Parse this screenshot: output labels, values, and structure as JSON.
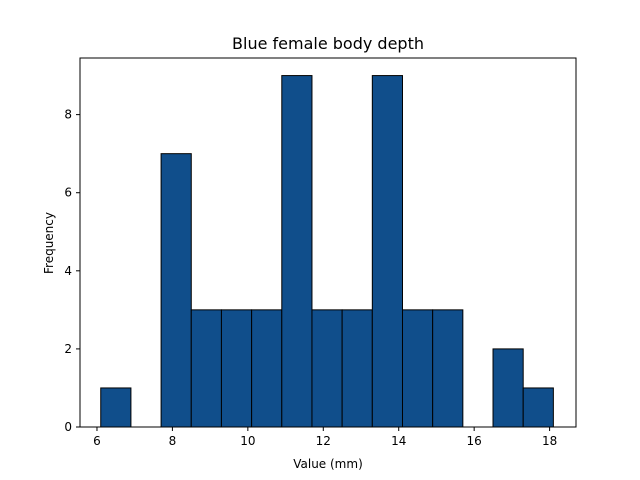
{
  "chart_data": {
    "type": "bar",
    "title": "Blue female body depth",
    "xlabel": "Value (mm)",
    "ylabel": "Frequency",
    "xlim": [
      5.55,
      18.7
    ],
    "ylim": [
      0,
      9.45
    ],
    "xticks": [
      6,
      8,
      10,
      12,
      14,
      16,
      18
    ],
    "yticks": [
      0,
      2,
      4,
      6,
      8
    ],
    "grid": false,
    "bar_color": "#104e8b",
    "edge_color": "#000000",
    "bins": [
      {
        "start": 6.1,
        "end": 6.9,
        "count": 1
      },
      {
        "start": 6.9,
        "end": 7.7,
        "count": 0
      },
      {
        "start": 7.7,
        "end": 8.5,
        "count": 7
      },
      {
        "start": 8.5,
        "end": 9.3,
        "count": 3
      },
      {
        "start": 9.3,
        "end": 10.1,
        "count": 3
      },
      {
        "start": 10.1,
        "end": 10.9,
        "count": 3
      },
      {
        "start": 10.9,
        "end": 11.7,
        "count": 9
      },
      {
        "start": 11.7,
        "end": 12.5,
        "count": 3
      },
      {
        "start": 12.5,
        "end": 13.3,
        "count": 3
      },
      {
        "start": 13.3,
        "end": 14.1,
        "count": 9
      },
      {
        "start": 14.1,
        "end": 14.9,
        "count": 3
      },
      {
        "start": 14.9,
        "end": 15.7,
        "count": 3
      },
      {
        "start": 15.7,
        "end": 16.5,
        "count": 0
      },
      {
        "start": 16.5,
        "end": 17.3,
        "count": 2
      },
      {
        "start": 17.3,
        "end": 18.1,
        "count": 1
      }
    ]
  }
}
